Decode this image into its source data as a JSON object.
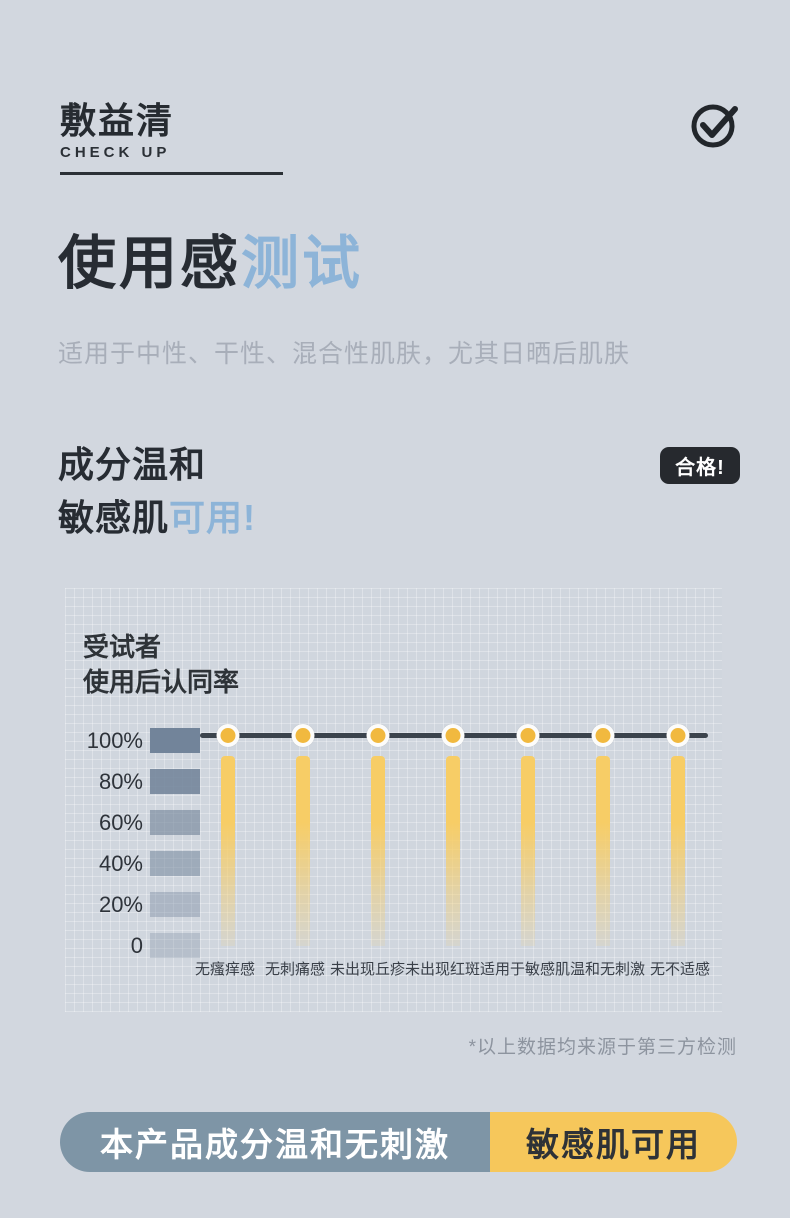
{
  "header": {
    "brand": "敷益清",
    "subtitle": "CHECK UP",
    "icon": "check-circle-icon"
  },
  "hero": {
    "title_dark": "使用感",
    "title_accent": "测试",
    "subtitle": "适用于中性、干性、混合性肌肤，尤其日晒后肌肤"
  },
  "claim": {
    "line1": "成分温和",
    "line2_dark": "敏感肌",
    "line2_accent": "可用!",
    "pass_badge": "合格!"
  },
  "chart_data": {
    "type": "bar",
    "title": "受试者使用后认同率",
    "title_line1": "受试者",
    "title_line2": "使用后认同率",
    "categories": [
      "无瘙痒感",
      "无刺痛感",
      "未出现丘疹",
      "未出现红斑",
      "适用于敏感肌",
      "温和无刺激",
      "无不适感"
    ],
    "values": [
      100,
      100,
      100,
      100,
      100,
      100,
      100
    ],
    "unit": "%",
    "ylim": [
      0,
      100
    ],
    "y_axis": [
      {
        "label": "100%",
        "block_opacity": 1.0
      },
      {
        "label": "80%",
        "block_opacity": 0.88
      },
      {
        "label": "60%",
        "block_opacity": 0.62
      },
      {
        "label": "40%",
        "block_opacity": 0.52
      },
      {
        "label": "20%",
        "block_opacity": 0.38
      },
      {
        "label": "0",
        "block_opacity": 0.28
      }
    ],
    "grid": true,
    "legend": false,
    "marker_color": "#f1b93f",
    "bar_color": "#f7cd66",
    "line_color": "#3b434c"
  },
  "footnote": "*以上数据均来源于第三方检测",
  "banner": {
    "left": "本产品成分温和无刺激",
    "right": "敏感肌可用"
  },
  "colors": {
    "background": "#d2d7df",
    "dark_text": "#272c33",
    "accent_blue": "#8db4d8",
    "muted_gray": "#a8aeb9",
    "badge_dark": "#26292e",
    "slate_block": "#72849a",
    "banner_slate": "#7e95a6",
    "banner_yellow": "#f6c75b"
  }
}
